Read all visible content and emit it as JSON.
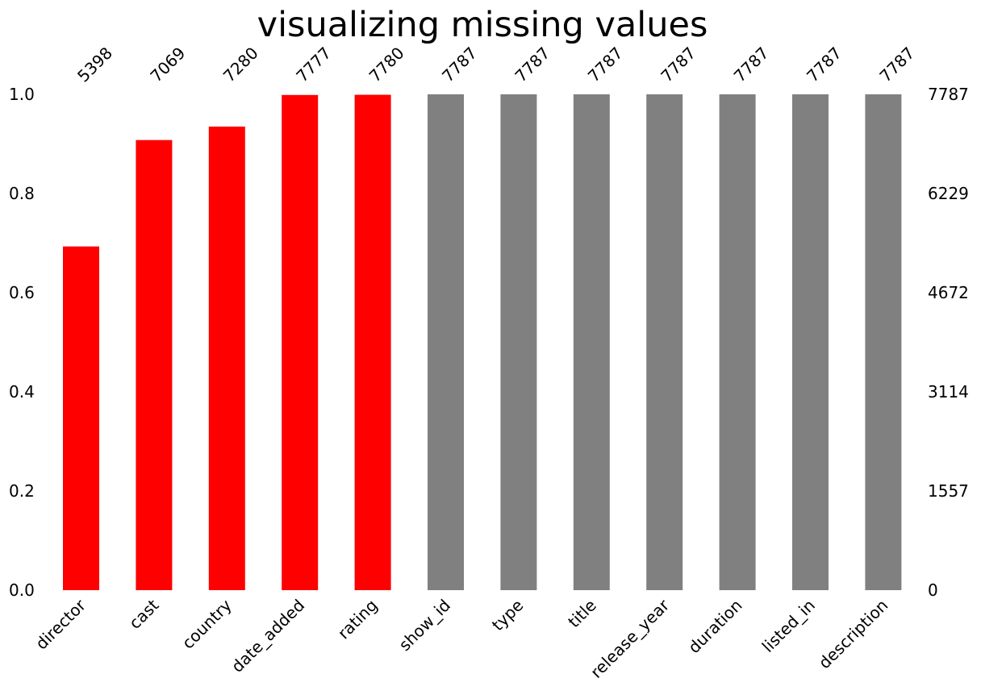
{
  "chart_data": {
    "type": "bar",
    "title": "visualizing missing values",
    "xlabel": "",
    "ylabel": "",
    "categories": [
      "director",
      "cast",
      "country",
      "date_added",
      "rating",
      "show_id",
      "type",
      "title",
      "release_year",
      "duration",
      "listed_in",
      "description"
    ],
    "counts": [
      5398,
      7069,
      7280,
      7777,
      7780,
      7787,
      7787,
      7787,
      7787,
      7787,
      7787,
      7787
    ],
    "total": 7787,
    "values": [
      0.6932,
      0.9078,
      0.9349,
      0.9987,
      0.9991,
      1.0,
      1.0,
      1.0,
      1.0,
      1.0,
      1.0,
      1.0
    ],
    "bar_colors": [
      "#ff0000",
      "#ff0000",
      "#ff0000",
      "#ff0000",
      "#ff0000",
      "#808080",
      "#808080",
      "#808080",
      "#808080",
      "#808080",
      "#808080",
      "#808080"
    ],
    "ylim": [
      0,
      1
    ],
    "yticks_left": [
      "0.0",
      "0.2",
      "0.4",
      "0.6",
      "0.8",
      "1.0"
    ],
    "yticks_right": [
      "0",
      "1557",
      "3114",
      "4672",
      "6229",
      "7787"
    ],
    "grid": false,
    "legend": "none"
  }
}
